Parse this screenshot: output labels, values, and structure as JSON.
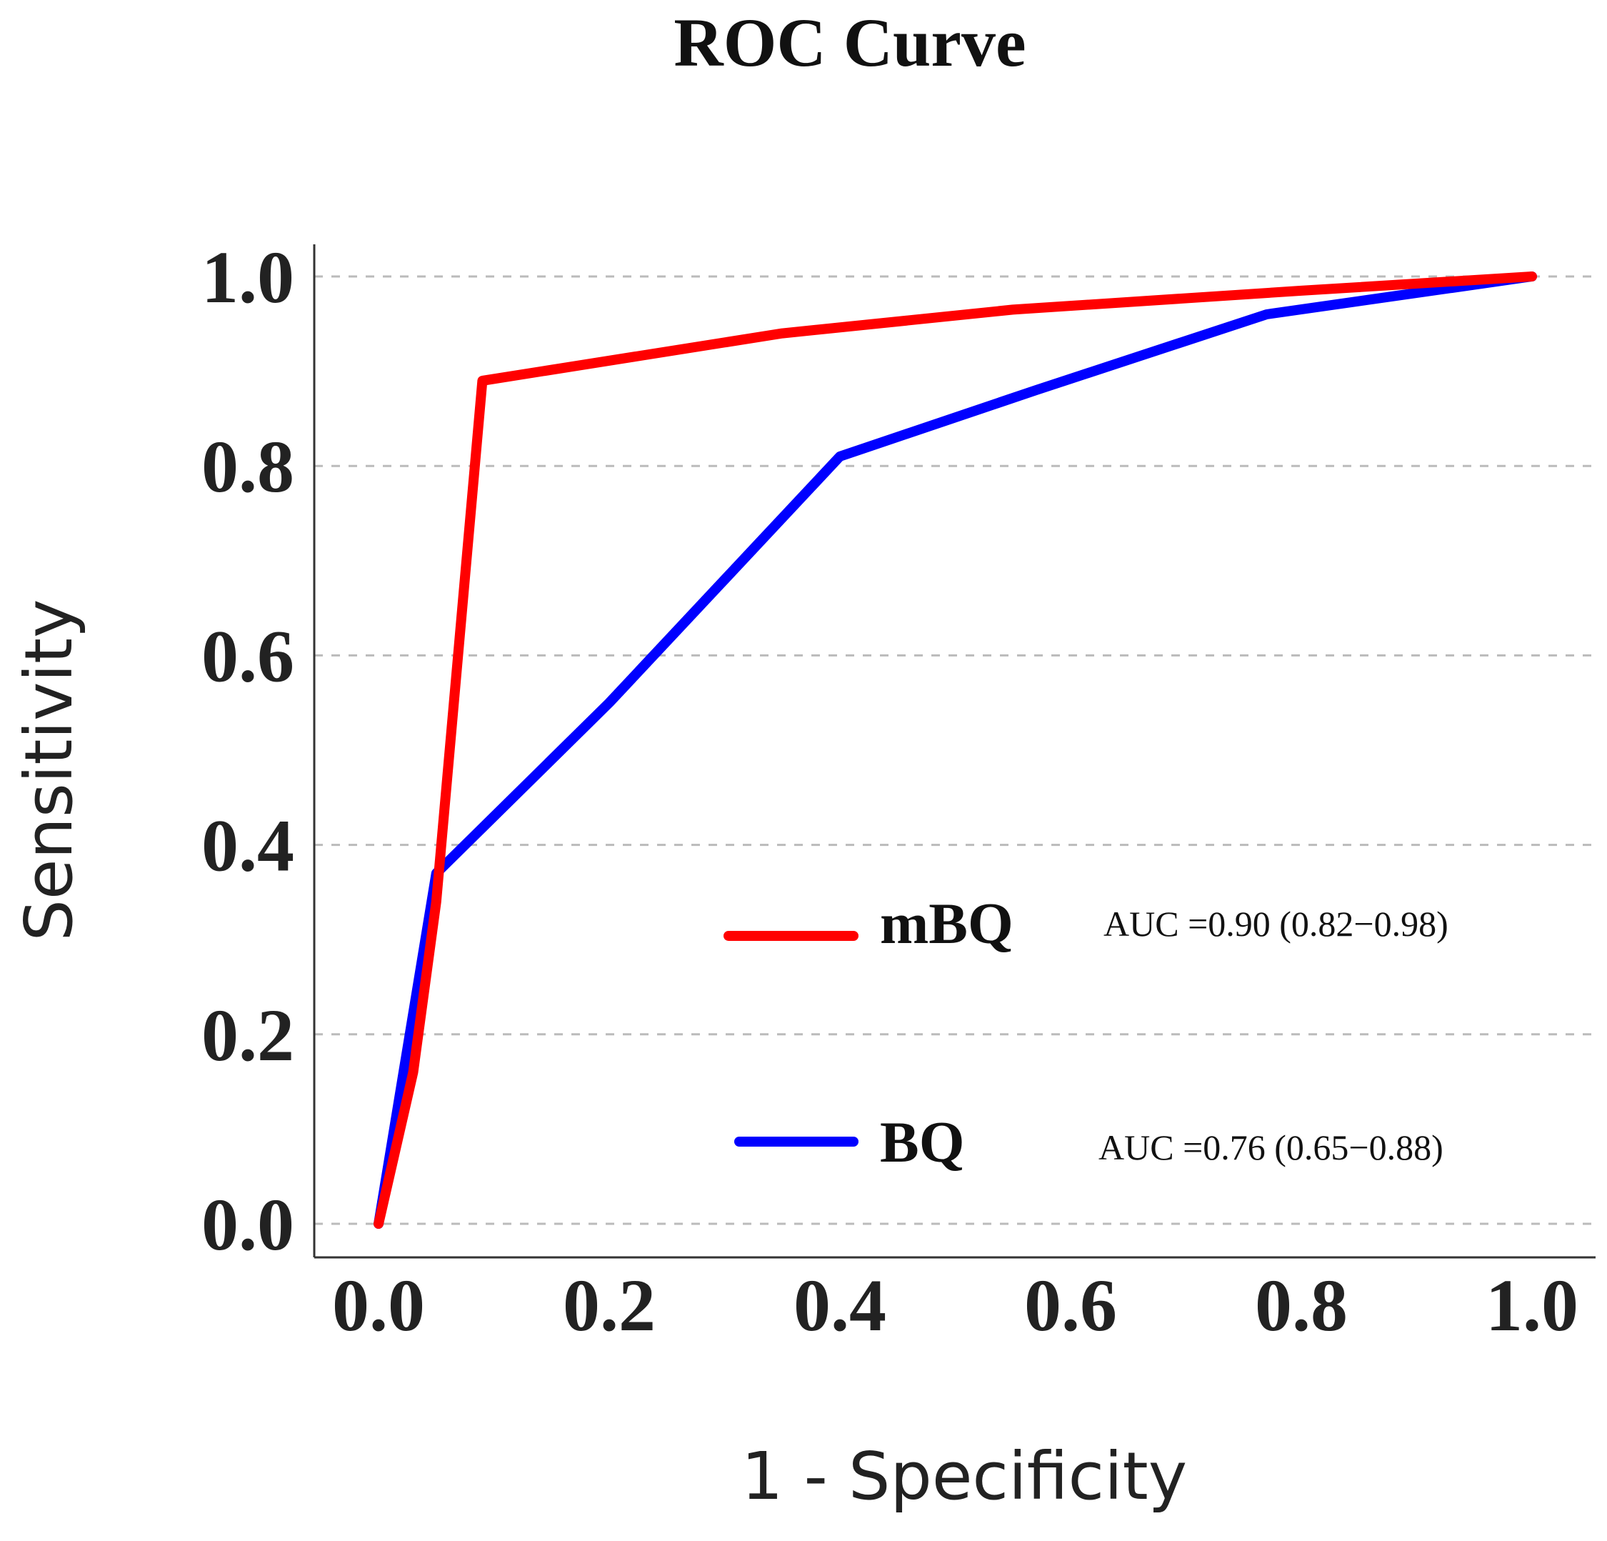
{
  "chart_data": {
    "type": "line",
    "title": "ROC Curve",
    "xlabel": "1 - Specificity",
    "ylabel": "Sensitivity",
    "xlim": [
      0,
      1
    ],
    "ylim": [
      0,
      1
    ],
    "x_ticks": [
      "0.0",
      "0.2",
      "0.4",
      "0.6",
      "0.8",
      "1.0"
    ],
    "y_ticks": [
      "0.0",
      "0.2",
      "0.4",
      "0.6",
      "0.8",
      "1.0"
    ],
    "grid": "horizontal dashed",
    "legend_position": "bottom-right",
    "series": [
      {
        "name": "mBQ",
        "color": "#ff0000",
        "auc_label": "AUC =0.90 (0.82−0.98)",
        "x": [
          0.0,
          0.03,
          0.05,
          0.09,
          0.35,
          0.55,
          0.8,
          1.0
        ],
        "y": [
          0.0,
          0.16,
          0.34,
          0.89,
          0.94,
          0.965,
          0.985,
          1.0
        ]
      },
      {
        "name": "BQ",
        "color": "#0000ff",
        "auc_label": "AUC =0.76 (0.65−0.88)",
        "x": [
          0.0,
          0.05,
          0.2,
          0.4,
          0.57,
          0.77,
          1.0
        ],
        "y": [
          0.0,
          0.37,
          0.55,
          0.81,
          0.88,
          0.96,
          1.0
        ]
      }
    ]
  }
}
